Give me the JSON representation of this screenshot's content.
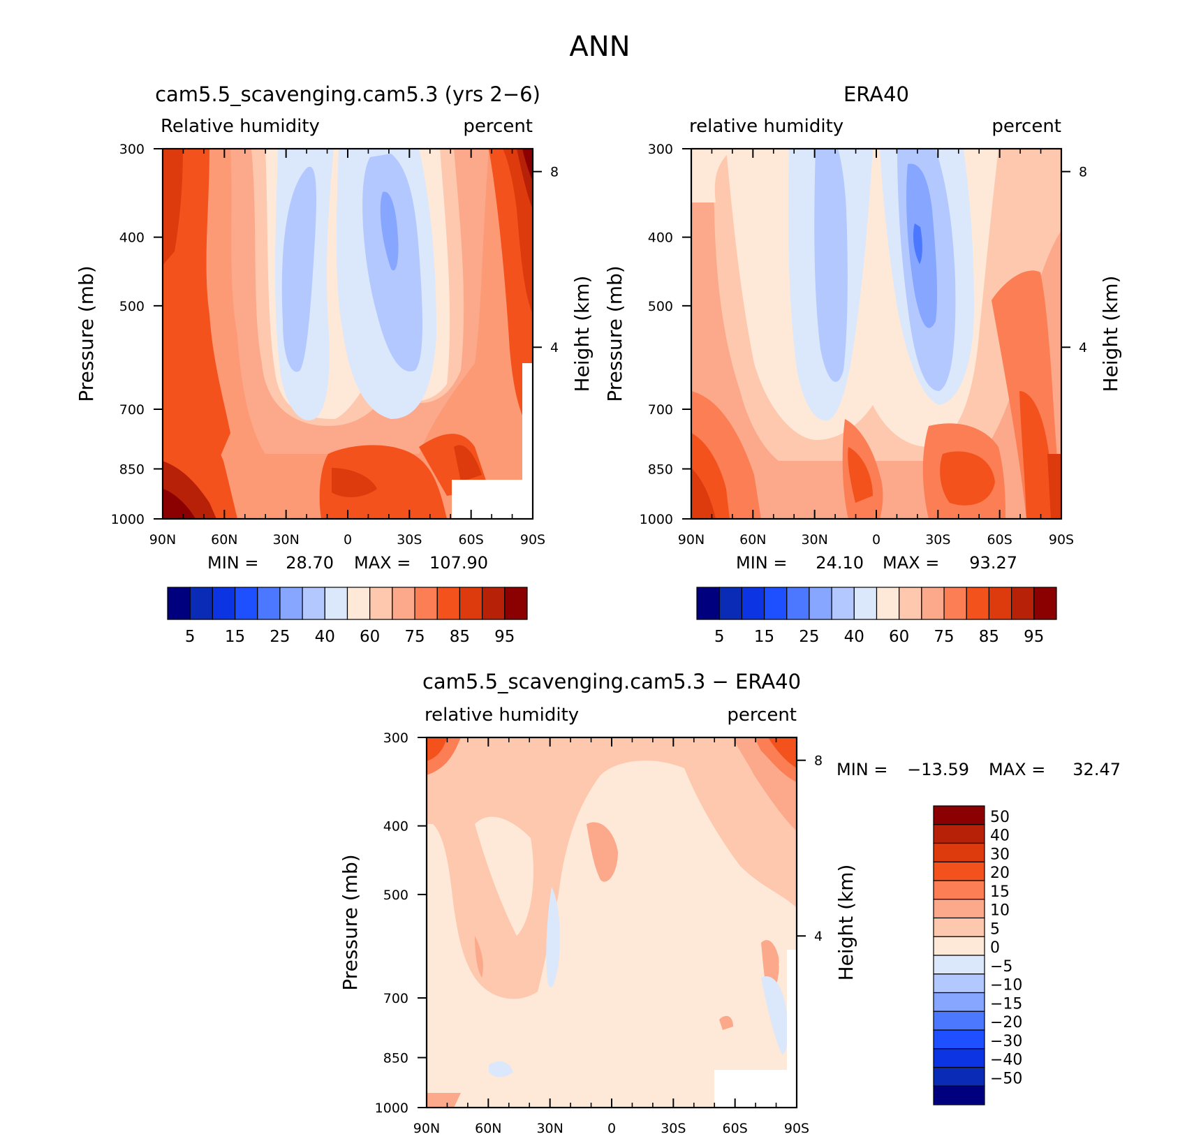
{
  "figure": {
    "title": "ANN"
  },
  "chart_data": [
    {
      "type": "contour",
      "title": "cam5.5_scavenging.cam5.3 (yrs 2−6)",
      "subtitle_left": "Relative humidity",
      "subtitle_right": "percent",
      "ylabel": "Pressure (mb)",
      "y2label": "Height (km)",
      "x_ticks": [
        "90N",
        "60N",
        "30N",
        "0",
        "30S",
        "60S",
        "90S"
      ],
      "y_ticks": [
        300,
        400,
        500,
        700,
        850,
        1000
      ],
      "y2_ticks": [
        8,
        4
      ],
      "ylim": [
        300,
        1000
      ],
      "min_label": "MIN =",
      "min_value": "28.70",
      "max_label": "MAX =",
      "max_value": "107.90",
      "colorbar": {
        "orientation": "horizontal",
        "colors": [
          "#00007f",
          "#0a2bb6",
          "#0d34e3",
          "#1e50ff",
          "#4b78ff",
          "#86a6ff",
          "#b3c8ff",
          "#dbe8fb",
          "#fee9d8",
          "#fdc8ae",
          "#fca88a",
          "#fb7e55",
          "#f4521d",
          "#dd3b0d",
          "#b72108",
          "#8b0000"
        ],
        "labels": [
          "5",
          "15",
          "25",
          "40",
          "60",
          "75",
          "85",
          "95"
        ]
      }
    },
    {
      "type": "contour",
      "title": "ERA40",
      "subtitle_left": "relative humidity",
      "subtitle_right": "percent",
      "ylabel": "Pressure (mb)",
      "y2label": "Height (km)",
      "x_ticks": [
        "90N",
        "60N",
        "30N",
        "0",
        "30S",
        "60S",
        "90S"
      ],
      "y_ticks": [
        300,
        400,
        500,
        700,
        850,
        1000
      ],
      "y2_ticks": [
        8,
        4
      ],
      "ylim": [
        300,
        1000
      ],
      "min_label": "MIN =",
      "min_value": "24.10",
      "max_label": "MAX =",
      "max_value": "93.27",
      "colorbar": {
        "orientation": "horizontal",
        "colors": [
          "#00007f",
          "#0a2bb6",
          "#0d34e3",
          "#1e50ff",
          "#4b78ff",
          "#86a6ff",
          "#b3c8ff",
          "#dbe8fb",
          "#fee9d8",
          "#fdc8ae",
          "#fca88a",
          "#fb7e55",
          "#f4521d",
          "#dd3b0d",
          "#b72108",
          "#8b0000"
        ],
        "labels": [
          "5",
          "15",
          "25",
          "40",
          "60",
          "75",
          "85",
          "95"
        ]
      }
    },
    {
      "type": "contour",
      "title": "cam5.5_scavenging.cam5.3 − ERA40",
      "subtitle_left": "relative humidity",
      "subtitle_right": "percent",
      "ylabel": "Pressure (mb)",
      "y2label": "Height (km)",
      "x_ticks": [
        "90N",
        "60N",
        "30N",
        "0",
        "30S",
        "60S",
        "90S"
      ],
      "y_ticks": [
        300,
        400,
        500,
        700,
        850,
        1000
      ],
      "y2_ticks": [
        8,
        4
      ],
      "ylim": [
        300,
        1000
      ],
      "min_label": "MIN =",
      "min_value": "−13.59",
      "max_label": "MAX =",
      "max_value": "32.47",
      "colorbar": {
        "orientation": "vertical",
        "colors": [
          "#8b0000",
          "#b72108",
          "#dd3b0d",
          "#f4521d",
          "#fb7e55",
          "#fca88a",
          "#fdc8ae",
          "#fee9d8",
          "#dbe8fb",
          "#b3c8ff",
          "#86a6ff",
          "#4b78ff",
          "#1e50ff",
          "#0d34e3",
          "#0a2bb6",
          "#00007f"
        ],
        "labels": [
          "50",
          "40",
          "30",
          "20",
          "15",
          "10",
          "5",
          "0",
          "−5",
          "−10",
          "−15",
          "−20",
          "−30",
          "−40",
          "−50"
        ]
      }
    }
  ]
}
